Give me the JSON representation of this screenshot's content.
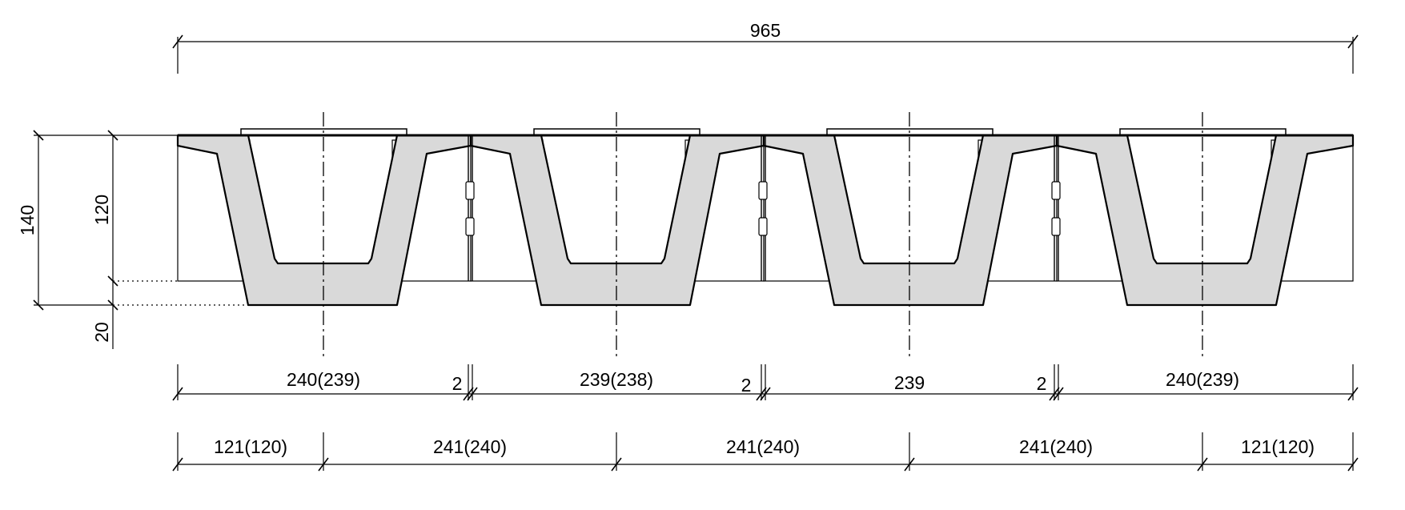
{
  "dimensions": {
    "overall_width": "965",
    "total_height": "140",
    "girder_height": "120",
    "bottom_offset": "20",
    "girder_widths": [
      "240(239)",
      "239(238)",
      "239",
      "240(239)"
    ],
    "joint_widths": [
      "2",
      "2",
      "2"
    ],
    "centerline_spacings": [
      "121(120)",
      "241(240)",
      "241(240)",
      "241(240)",
      "121(120)"
    ]
  },
  "girder_count": 4
}
